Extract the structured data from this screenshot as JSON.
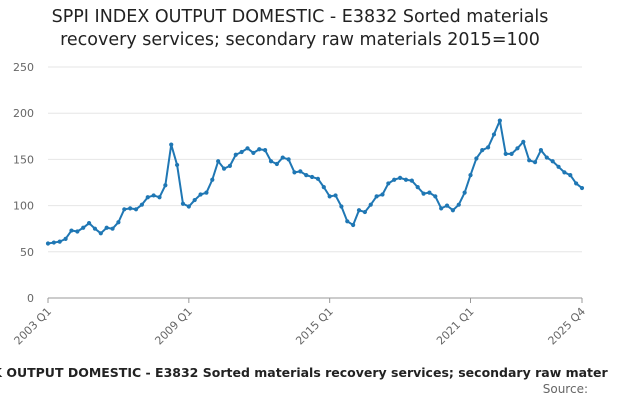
{
  "chart_data": {
    "type": "line",
    "title_lines": [
      "SPPI INDEX OUTPUT DOMESTIC - E3832 Sorted materials",
      "recovery services; secondary raw materials 2015=100"
    ],
    "xlabel": "",
    "ylabel": "",
    "ylim": [
      0,
      250
    ],
    "yticks": [
      0,
      50,
      100,
      150,
      200,
      250
    ],
    "xtick_labels": [
      "2003 Q1",
      "2009 Q1",
      "2015 Q1",
      "2021 Q1",
      "2025 Q4"
    ],
    "grid": true,
    "legend": "K OUTPUT DOMESTIC - E3832 Sorted materials recovery services; secondary raw mater",
    "source": "Source:",
    "series": [
      {
        "name": "SPPI INDEX OUTPUT DOMESTIC - E3832 Sorted materials recovery services; secondary raw materials 2015=100",
        "color": "#1f77b4",
        "x": [
          "2003 Q1",
          "2003 Q2",
          "2003 Q3",
          "2003 Q4",
          "2004 Q1",
          "2004 Q2",
          "2004 Q3",
          "2004 Q4",
          "2005 Q1",
          "2005 Q2",
          "2005 Q3",
          "2005 Q4",
          "2006 Q1",
          "2006 Q2",
          "2006 Q3",
          "2006 Q4",
          "2007 Q1",
          "2007 Q2",
          "2007 Q3",
          "2007 Q4",
          "2008 Q1",
          "2008 Q2",
          "2008 Q3",
          "2008 Q4",
          "2009 Q1",
          "2009 Q2",
          "2009 Q3",
          "2009 Q4",
          "2010 Q1",
          "2010 Q2",
          "2010 Q3",
          "2010 Q4",
          "2011 Q1",
          "2011 Q2",
          "2011 Q3",
          "2011 Q4",
          "2012 Q1",
          "2012 Q2",
          "2012 Q3",
          "2012 Q4",
          "2013 Q1",
          "2013 Q2",
          "2013 Q3",
          "2013 Q4",
          "2014 Q1",
          "2014 Q2",
          "2014 Q3",
          "2014 Q4",
          "2015 Q1",
          "2015 Q2",
          "2015 Q3",
          "2015 Q4",
          "2016 Q1",
          "2016 Q2",
          "2016 Q3",
          "2016 Q4",
          "2017 Q1",
          "2017 Q2",
          "2017 Q3",
          "2017 Q4",
          "2018 Q1",
          "2018 Q2",
          "2018 Q3",
          "2018 Q4",
          "2019 Q1",
          "2019 Q2",
          "2019 Q3",
          "2019 Q4",
          "2020 Q1",
          "2020 Q2",
          "2020 Q3",
          "2020 Q4",
          "2021 Q1",
          "2021 Q2",
          "2021 Q3",
          "2021 Q4",
          "2022 Q1",
          "2022 Q2",
          "2022 Q3",
          "2022 Q4",
          "2023 Q1",
          "2023 Q2",
          "2023 Q3",
          "2023 Q4",
          "2024 Q1",
          "2024 Q2",
          "2024 Q3",
          "2024 Q4",
          "2025 Q1",
          "2025 Q2",
          "2025 Q3",
          "2025 Q4"
        ],
        "values": [
          59,
          60,
          61,
          64,
          73,
          72,
          76,
          81,
          75,
          70,
          76,
          75,
          82,
          96,
          97,
          96,
          101,
          109,
          111,
          109,
          122,
          166,
          144,
          102,
          99,
          106,
          112,
          114,
          128,
          148,
          140,
          143,
          155,
          158,
          162,
          157,
          161,
          160,
          148,
          145,
          152,
          150,
          136,
          137,
          133,
          131,
          129,
          120,
          110,
          111,
          99,
          83,
          79,
          95,
          93,
          101,
          110,
          112,
          124,
          128,
          130,
          128,
          127,
          120,
          113,
          114,
          110,
          97,
          100,
          95,
          101,
          114,
          133,
          151,
          160,
          163,
          177,
          192,
          156,
          156,
          162,
          169,
          149,
          147,
          160,
          152,
          148,
          142,
          136,
          133,
          124,
          119
        ]
      }
    ]
  }
}
